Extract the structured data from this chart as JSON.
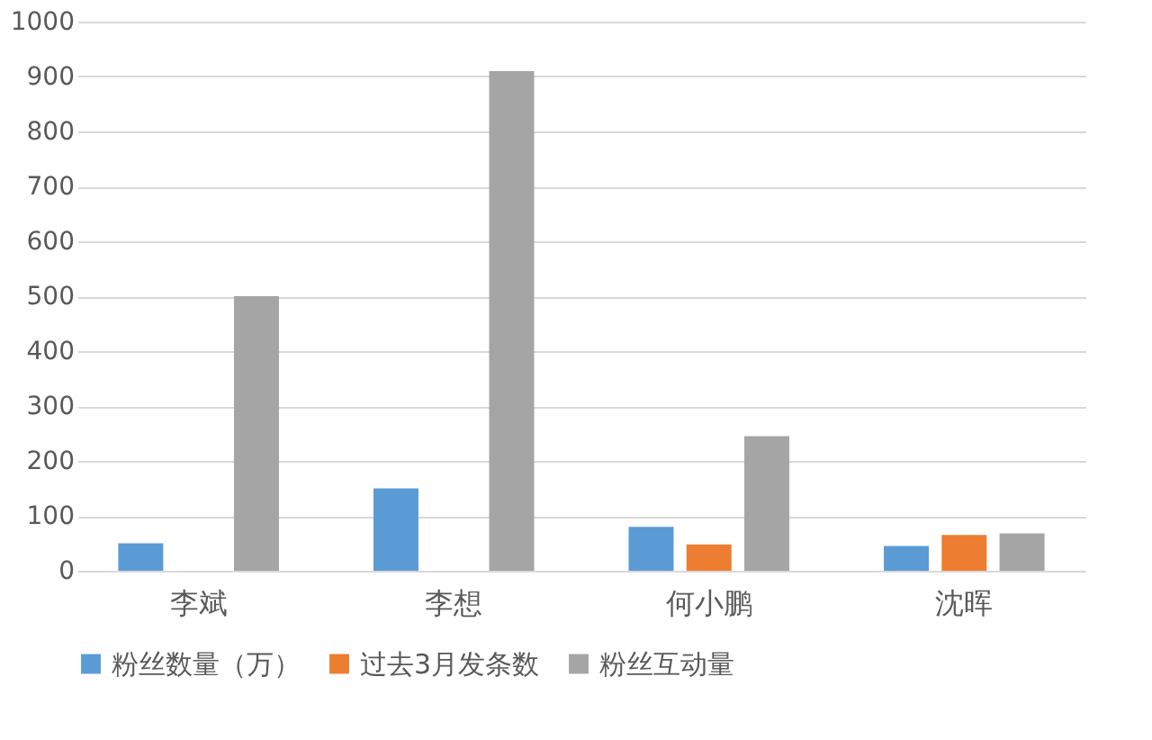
{
  "chart_data": {
    "type": "bar",
    "categories": [
      "李斌",
      "李想",
      "何小鹏",
      "沈晖"
    ],
    "series": [
      {
        "name": "粉丝数量（万）",
        "color": "#5b9bd5",
        "values": [
          50,
          150,
          80,
          45
        ]
      },
      {
        "name": "过去3月发条数",
        "color": "#ed7d31",
        "values": [
          null,
          null,
          48,
          65
        ]
      },
      {
        "name": "粉丝互动量",
        "color": "#a5a5a5",
        "values": [
          500,
          910,
          245,
          68
        ]
      }
    ],
    "ylim": [
      0,
      1000
    ],
    "yticks": [
      0,
      100,
      200,
      300,
      400,
      500,
      600,
      700,
      800,
      900,
      1000
    ],
    "grid": "y",
    "legend": "bottom"
  }
}
